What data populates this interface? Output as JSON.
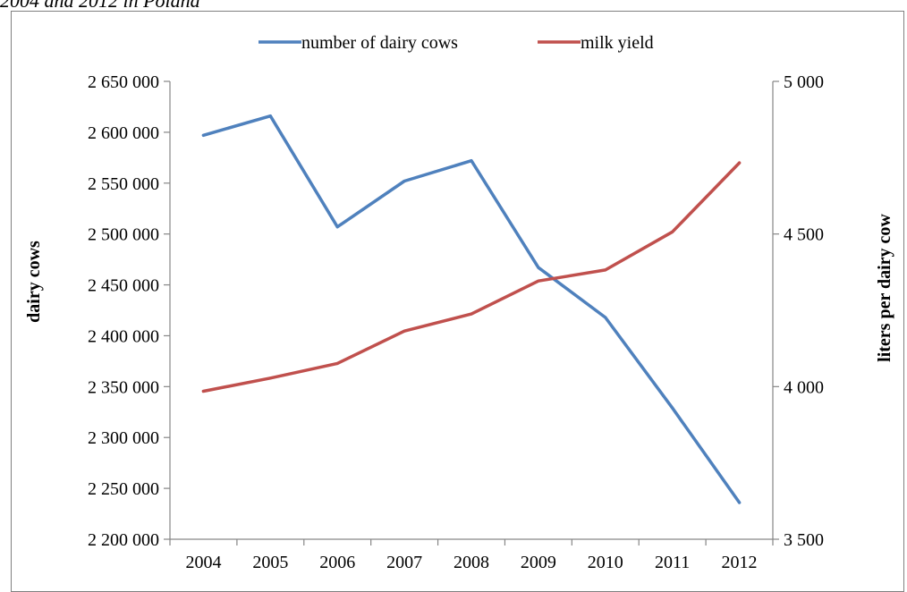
{
  "caption": {
    "text": "2004 and 2012 in Poland"
  },
  "chart_data": {
    "type": "line",
    "categories": [
      "2004",
      "2005",
      "2006",
      "2007",
      "2008",
      "2009",
      "2010",
      "2011",
      "2012"
    ],
    "series": [
      {
        "name": "number of dairy cows",
        "axis": "left",
        "color": "#4F81BD",
        "values": [
          2597000,
          2616000,
          2507000,
          2552000,
          2572000,
          2467000,
          2418000,
          2329000,
          2236000
        ]
      },
      {
        "name": "milk yield",
        "axis": "right",
        "color": "#C0504D",
        "values": [
          3985,
          4028,
          4076,
          4182,
          4238,
          4346,
          4382,
          4507,
          4733
        ]
      }
    ],
    "ylabel": "dairy cows",
    "y2label": "liters per dairy cow",
    "ylim": [
      2200000,
      2650000
    ],
    "yticks": [
      2200000,
      2250000,
      2300000,
      2350000,
      2400000,
      2450000,
      2500000,
      2550000,
      2600000,
      2650000
    ],
    "ytick_labels": [
      "2 200 000",
      "2 250 000",
      "2 300 000",
      "2 350 000",
      "2 400 000",
      "2 450 000",
      "2 500 000",
      "2 550 000",
      "2 600 000",
      "2 650 000"
    ],
    "y2lim": [
      3500,
      5000
    ],
    "y2ticks": [
      3500,
      4000,
      4500,
      5000
    ],
    "y2tick_labels": [
      "3 500",
      "4 000",
      "4 500",
      "5 000"
    ],
    "legend_position": "top",
    "grid": false
  }
}
